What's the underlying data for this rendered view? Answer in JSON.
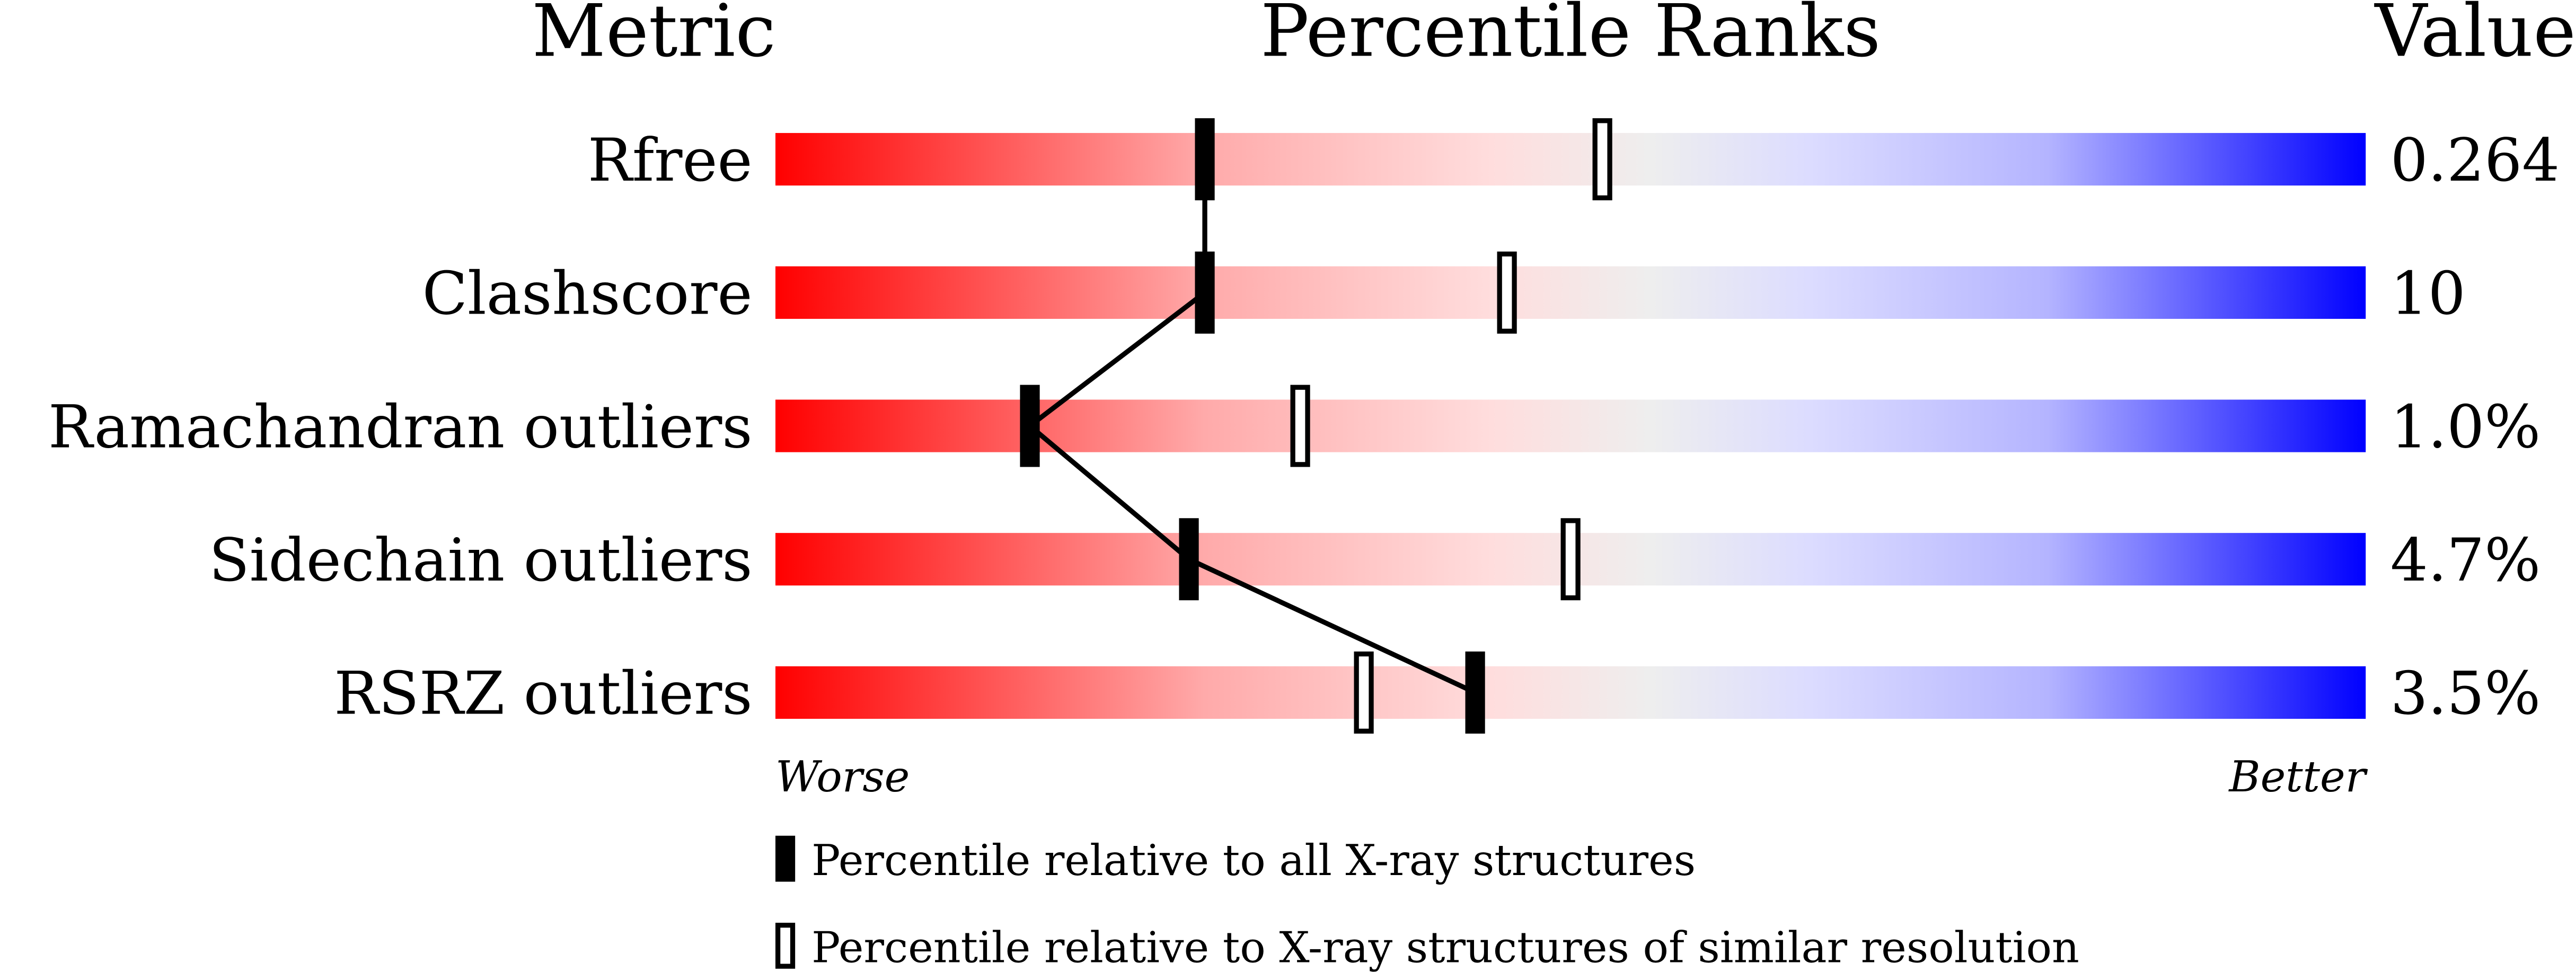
{
  "chart_data": {
    "type": "bar",
    "headers": {
      "metric": "Metric",
      "ranks": "Percentile Ranks",
      "value": "Value"
    },
    "xlim": [
      0,
      100
    ],
    "rows": [
      {
        "metric": "Rfree",
        "value": "0.264",
        "percentile_all": 27,
        "percentile_similar": 52
      },
      {
        "metric": "Clashscore",
        "value": "10",
        "percentile_all": 27,
        "percentile_similar": 46
      },
      {
        "metric": "Ramachandran outliers",
        "value": "1.0%",
        "percentile_all": 16,
        "percentile_similar": 33
      },
      {
        "metric": "Sidechain outliers",
        "value": "4.7%",
        "percentile_all": 26,
        "percentile_similar": 50
      },
      {
        "metric": "RSRZ outliers",
        "value": "3.5%",
        "percentile_all": 44,
        "percentile_similar": 37
      }
    ],
    "axis": {
      "worse": "Worse",
      "better": "Better"
    },
    "legend": {
      "all": "Percentile relative to all X-ray structures",
      "similar": "Percentile relative to X-ray structures of similar resolution"
    },
    "colors": {
      "worse": "#ff0000",
      "mid": "#eeeeee",
      "better": "#0000ff"
    }
  }
}
